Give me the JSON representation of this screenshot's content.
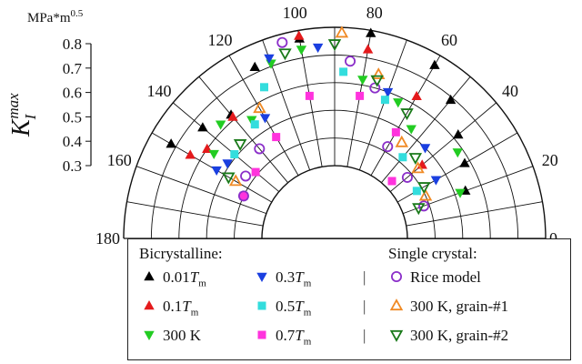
{
  "chart_data": {
    "type": "polar-scatter",
    "radial_axis": {
      "label": "K_I^max",
      "unit": "MPa*m^0.5",
      "range": [
        0.3,
        0.8
      ],
      "ticks": [
        "0.3",
        "0.4",
        "0.5",
        "0.6",
        "0.7",
        "0.8"
      ]
    },
    "angular_axis": {
      "range_deg": [
        0,
        180
      ],
      "ticks": [
        "0",
        "20",
        "40",
        "60",
        "80",
        "100",
        "120",
        "140",
        "160",
        "180"
      ],
      "grid_step_deg": 10
    },
    "legend": {
      "group_labels": [
        "Bicrystalline:",
        "Single crystal:"
      ],
      "separator": "|"
    },
    "series": [
      {
        "name": "0.01T_m",
        "label_main": "0.01",
        "label_var": "T",
        "label_sub": "m",
        "group": "bicrystal",
        "marker": "triangle-up",
        "color": "#000000",
        "filled": true,
        "points": [
          [
            20,
            0.54
          ],
          [
            30,
            0.58
          ],
          [
            40,
            0.62
          ],
          [
            50,
            0.69
          ],
          [
            60,
            0.76
          ],
          [
            80,
            0.79
          ],
          [
            100,
            0.77
          ],
          [
            115,
            0.72
          ],
          [
            130,
            0.62
          ],
          [
            140,
            0.66
          ],
          [
            150,
            0.72
          ]
        ]
      },
      {
        "name": "0.1T_m",
        "label_main": "0.1",
        "label_var": "T",
        "label_sub": "m",
        "group": "bicrystal",
        "marker": "triangle-up",
        "color": "#e41a1c",
        "filled": true,
        "points": [
          [
            40,
            0.45
          ],
          [
            60,
            0.63
          ],
          [
            80,
            0.73
          ],
          [
            100,
            0.78
          ],
          [
            130,
            0.61
          ],
          [
            145,
            0.6
          ],
          [
            150,
            0.64
          ]
        ]
      },
      {
        "name": "300 K",
        "label_main": "300 K",
        "label_var": "",
        "label_sub": "",
        "group": "bicrystal",
        "marker": "triangle-down",
        "color": "#22cc22",
        "filled": true,
        "points": [
          [
            20,
            0.52
          ],
          [
            35,
            0.58
          ],
          [
            55,
            0.52
          ],
          [
            65,
            0.58
          ],
          [
            80,
            0.62
          ],
          [
            100,
            0.73
          ],
          [
            110,
            0.71
          ],
          [
            125,
            0.56
          ],
          [
            135,
            0.62
          ],
          [
            145,
            0.57
          ]
        ]
      },
      {
        "name": "0.3T_m",
        "label_main": "0.3",
        "label_var": "T",
        "label_sub": "m",
        "group": "bicrystal",
        "marker": "triangle-down",
        "color": "#1a3fe0",
        "filled": true,
        "points": [
          [
            30,
            0.46
          ],
          [
            45,
            0.5
          ],
          [
            70,
            0.6
          ],
          [
            95,
            0.73
          ],
          [
            110,
            0.73
          ],
          [
            120,
            0.54
          ],
          [
            145,
            0.51
          ],
          [
            150,
            0.53
          ]
        ]
      },
      {
        "name": "0.5T_m",
        "label_main": "0.5",
        "label_var": "T",
        "label_sub": "m",
        "group": "bicrystal",
        "marker": "square",
        "color": "#33dddd",
        "filled": true,
        "points": [
          [
            30,
            0.38
          ],
          [
            50,
            0.42
          ],
          [
            70,
            0.57
          ],
          [
            87,
            0.64
          ],
          [
            115,
            0.64
          ],
          [
            125,
            0.54
          ],
          [
            140,
            0.51
          ],
          [
            155,
            0.4
          ]
        ]
      },
      {
        "name": "0.7T_m",
        "label_main": "0.7",
        "label_var": "T",
        "label_sub": "m",
        "group": "bicrystal",
        "marker": "square",
        "color": "#ff33dd",
        "filled": true,
        "points": [
          [
            45,
            0.33
          ],
          [
            60,
            0.48
          ],
          [
            80,
            0.56
          ],
          [
            100,
            0.56
          ],
          [
            120,
            0.46
          ],
          [
            140,
            0.41
          ],
          [
            155,
            0.4
          ]
        ]
      },
      {
        "name": "Rice model",
        "label_main": "Rice model",
        "label_var": "",
        "label_sub": "",
        "group": "single",
        "marker": "circle",
        "color": "#8b2fc9",
        "filled": false,
        "points": [
          [
            20,
            0.38
          ],
          [
            40,
            0.38
          ],
          [
            60,
            0.42
          ],
          [
            75,
            0.6
          ],
          [
            85,
            0.68
          ],
          [
            105,
            0.77
          ],
          [
            130,
            0.46
          ],
          [
            145,
            0.43
          ],
          [
            155,
            0.4
          ]
        ]
      },
      {
        "name": "300 K, grain-#1",
        "label_main": "300 K, grain-#1",
        "label_var": "",
        "label_sub": "",
        "group": "single",
        "marker": "triangle-up",
        "color": "#f08a24",
        "filled": false,
        "points": [
          [
            25,
            0.4
          ],
          [
            40,
            0.43
          ],
          [
            55,
            0.46
          ],
          [
            75,
            0.65
          ],
          [
            88,
            0.78
          ],
          [
            120,
            0.58
          ],
          [
            150,
            0.45
          ]
        ]
      },
      {
        "name": "300 K, grain-#2",
        "label_main": "300 K, grain-#2",
        "label_var": "",
        "label_sub": "",
        "group": "single",
        "marker": "triangle-down",
        "color": "#1a7a1a",
        "filled": false,
        "points": [
          [
            20,
            0.36
          ],
          [
            30,
            0.41
          ],
          [
            45,
            0.45
          ],
          [
            60,
            0.56
          ],
          [
            75,
            0.63
          ],
          [
            90,
            0.74
          ],
          [
            105,
            0.73
          ],
          [
            135,
            0.52
          ],
          [
            150,
            0.48
          ]
        ]
      }
    ]
  }
}
